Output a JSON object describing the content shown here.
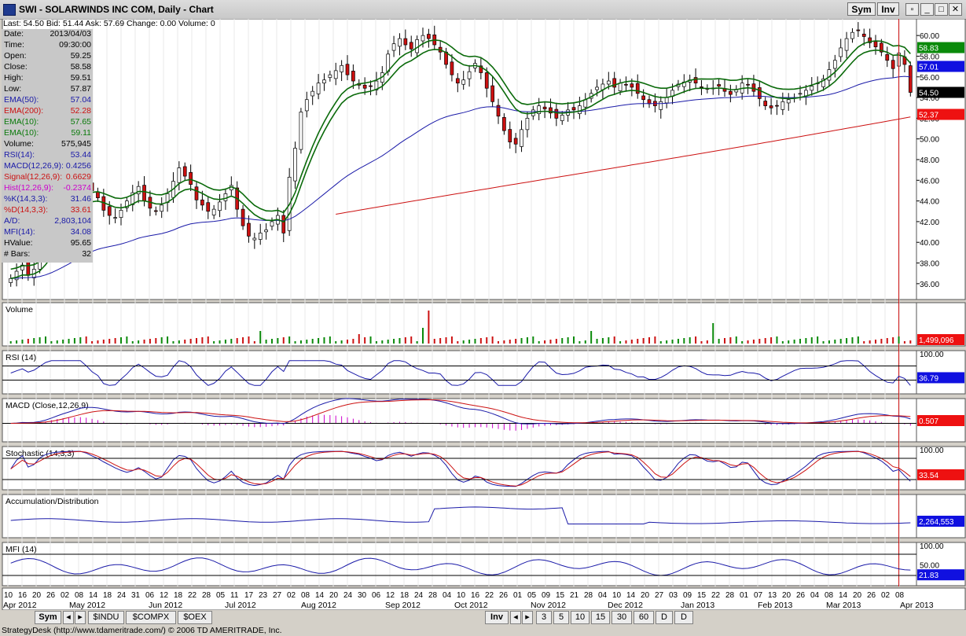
{
  "window": {
    "title": "SWI - SOLARWINDS INC COM, Daily - Chart",
    "sym_btn": "Sym",
    "inv_btn": "Inv"
  },
  "quote_line": "Last: 54.50  Bid: 51.44  Ask: 57.69  Change: 0.00  Volume: 0",
  "info": [
    {
      "label": "Date:",
      "value": "2013/04/03",
      "color": "#000000"
    },
    {
      "label": "Time:",
      "value": "09:30:00",
      "color": "#000000"
    },
    {
      "label": "Open:",
      "value": "59.25",
      "color": "#000000"
    },
    {
      "label": "Close:",
      "value": "58.58",
      "color": "#000000"
    },
    {
      "label": "High:",
      "value": "59.51",
      "color": "#000000"
    },
    {
      "label": "Low:",
      "value": "57.87",
      "color": "#000000"
    },
    {
      "label": "EMA(50):",
      "value": "57.04",
      "color": "#1a1aa8"
    },
    {
      "label": "EMA(200):",
      "value": "52.28",
      "color": "#cc1111"
    },
    {
      "label": "EMA(10):",
      "value": "57.65",
      "color": "#0a7a0a"
    },
    {
      "label": "EMA(10):",
      "value": "59.11",
      "color": "#0a7a0a"
    },
    {
      "label": "Volume:",
      "value": "575,945",
      "color": "#000000"
    },
    {
      "label": "RSI(14):",
      "value": "53.44",
      "color": "#1a1aa8"
    },
    {
      "label": "MACD(12,26,9):",
      "value": "0.4256",
      "color": "#1a1aa8"
    },
    {
      "label": "Signal(12,26,9):",
      "value": "0.6629",
      "color": "#cc1111"
    },
    {
      "label": "Hist(12,26,9):",
      "value": "-0.2374",
      "color": "#cc00cc"
    },
    {
      "label": "%K(14,3,3):",
      "value": "31.46",
      "color": "#1a1aa8"
    },
    {
      "label": "%D(14,3,3):",
      "value": "33.61",
      "color": "#cc1111"
    },
    {
      "label": "A/D:",
      "value": "2,803,104",
      "color": "#1a1aa8"
    },
    {
      "label": "MFI(14):",
      "value": "34.08",
      "color": "#1a1aa8"
    },
    {
      "label": "HValue:",
      "value": "95.65",
      "color": "#000000"
    },
    {
      "label": "# Bars:",
      "value": "32",
      "color": "#000000"
    }
  ],
  "colors": {
    "up": "#0a8a0a",
    "down": "#cc1111",
    "ema50": "#1a1aa8",
    "ema200": "#cc1111",
    "ema10": "#0a6a0a",
    "k": "#1a1aa8",
    "d": "#cc1111"
  },
  "chart_data": {
    "type": "candlestick",
    "symbol": "SWI - SOLARWINDS INC COM",
    "interval": "Daily",
    "price_ylim": [
      35,
      61
    ],
    "price_ticks": [
      "60.00",
      "58.00",
      "56.00",
      "54.00",
      "52.00",
      "50.00",
      "48.00",
      "46.00",
      "44.00",
      "42.00",
      "40.00",
      "38.00",
      "36.00"
    ],
    "x_day_labels": [
      "10",
      "16",
      "20",
      "26",
      "02",
      "08",
      "14",
      "18",
      "24",
      "31",
      "06",
      "12",
      "18",
      "22",
      "28",
      "05",
      "11",
      "17",
      "23",
      "27",
      "02",
      "08",
      "14",
      "20",
      "24",
      "30",
      "06",
      "12",
      "18",
      "24",
      "28",
      "04",
      "10",
      "16",
      "22",
      "26",
      "01",
      "05",
      "09",
      "15",
      "21",
      "28",
      "04",
      "10",
      "14",
      "20",
      "27",
      "03",
      "09",
      "15",
      "22",
      "28",
      "01",
      "07",
      "13",
      "20",
      "26",
      "04",
      "08",
      "14",
      "20",
      "26",
      "02",
      "08"
    ],
    "x_month_labels": [
      "Apr 2012",
      "May 2012",
      "Jun 2012",
      "Jul 2012",
      "Aug 2012",
      "Sep 2012",
      "Oct 2012",
      "Nov 2012",
      "Dec 2012",
      "Jan 2013",
      "Feb 2013",
      "Mar 2013",
      "Apr 2013"
    ],
    "close": [
      36.5,
      37.2,
      37.8,
      36.8,
      37.4,
      38.6,
      40.5,
      42.3,
      43.8,
      44.6,
      45.1,
      46.4,
      47.2,
      46.1,
      45.0,
      44.3,
      43.1,
      42.6,
      42.4,
      43.1,
      44.0,
      44.8,
      45.4,
      44.0,
      43.3,
      43.0,
      43.6,
      44.7,
      45.9,
      47.2,
      46.4,
      45.6,
      44.1,
      43.6,
      43.0,
      43.2,
      43.9,
      44.7,
      45.5,
      43.2,
      41.6,
      40.6,
      40.4,
      40.9,
      41.2,
      42.0,
      42.6,
      40.9,
      46.3,
      49.1,
      52.6,
      53.8,
      54.6,
      55.4,
      55.7,
      56.2,
      56.6,
      57.1,
      56.2,
      55.6,
      55.2,
      54.9,
      55.1,
      55.6,
      56.4,
      58.2,
      59.2,
      59.7,
      59.1,
      58.7,
      59.6,
      60.0,
      59.7,
      59.1,
      58.4,
      57.2,
      56.2,
      55.4,
      55.7,
      56.5,
      57.3,
      56.4,
      54.9,
      53.6,
      52.2,
      50.8,
      49.7,
      49.5,
      50.9,
      52.0,
      52.8,
      53.2,
      52.9,
      52.5,
      52.0,
      52.3,
      52.8,
      52.8,
      53.2,
      53.8,
      54.4,
      55.0,
      55.3,
      55.6,
      55.0,
      55.4,
      55.2,
      55.0,
      54.4,
      53.8,
      53.4,
      53.2,
      53.6,
      54.0,
      54.7,
      55.3,
      55.5,
      55.7,
      55.4,
      55.0,
      54.8,
      54.9,
      55.1,
      54.6,
      54.3,
      54.8,
      55.4,
      55.2,
      54.6,
      53.9,
      53.2,
      53.0,
      53.2,
      53.6,
      53.8,
      54.0,
      54.4,
      54.7,
      55.1,
      55.4,
      55.8,
      56.7,
      57.6,
      58.8,
      59.7,
      60.3,
      60.5,
      59.9,
      59.3,
      58.9,
      58.4,
      57.6,
      56.8,
      58.3,
      57.2,
      54.5
    ],
    "volume_ylim": [
      0,
      1600000
    ],
    "volume_value": "1,499,096",
    "rsi_ylim": [
      0,
      100
    ],
    "rsi_levels": [
      70,
      30
    ],
    "rsi_value": "36.79",
    "rsi_tick": "100.00",
    "macd_value": "0.507",
    "stoch_ylim": [
      0,
      100
    ],
    "stoch_levels": [
      80,
      20
    ],
    "stoch_value": "33.54",
    "stoch_tick": "100.00",
    "ad_value": "2,264,553",
    "mfi_ylim": [
      0,
      100
    ],
    "mfi_levels": [
      80,
      20
    ],
    "mfi_value": "21.83",
    "mfi_ticks": [
      "100.00",
      "50.00"
    ],
    "ema50_last": "57.01",
    "ema200_last": "52.37",
    "ema10_last": "58.83",
    "last_price": "54.50"
  },
  "panels": {
    "volume": "Volume",
    "rsi": "RSI (14)",
    "macd": "MACD (Close,12,26,9)",
    "stoch": "Stochastic (14,3,3)",
    "ad": "Accumulation/Distribution",
    "mfi": "MFI (14)"
  },
  "bottom": {
    "sym": "Sym",
    "tabs": [
      "$INDU",
      "$COMPX",
      "$OEX"
    ],
    "inv": "Inv",
    "periods": [
      "3",
      "5",
      "10",
      "15",
      "30",
      "60",
      "D",
      "D"
    ]
  },
  "status": "StrategyDesk (http://www.tdameritrade.com/) © 2006 TD AMERITRADE, Inc."
}
